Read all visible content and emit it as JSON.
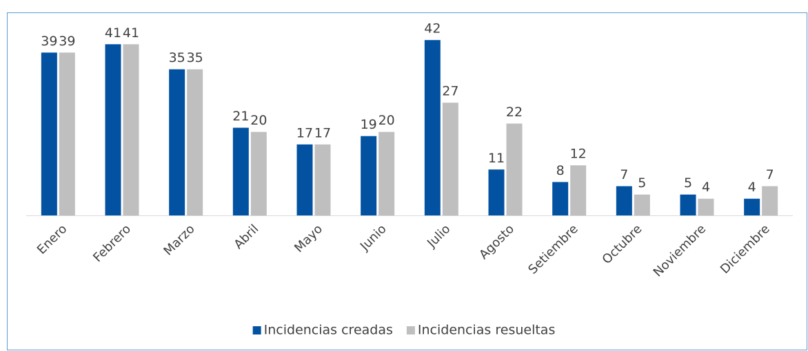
{
  "chart_data": {
    "type": "bar",
    "categories": [
      "Enero",
      "Febrero",
      "Marzo",
      "Abril",
      "Mayo",
      "Junio",
      "Julio",
      "Agosto",
      "Setiembre",
      "Octubre",
      "Noviembre",
      "Diciembre"
    ],
    "series": [
      {
        "name": "Incidencias creadas",
        "color": "#0352a2",
        "values": [
          39,
          41,
          35,
          21,
          17,
          19,
          42,
          11,
          8,
          7,
          5,
          4
        ]
      },
      {
        "name": "Incidencias resueltas",
        "color": "#bfbfbf",
        "values": [
          39,
          41,
          35,
          20,
          17,
          20,
          27,
          22,
          12,
          5,
          4,
          7
        ]
      }
    ],
    "ylim": [
      0,
      45
    ],
    "legend": "bottom",
    "grid": false
  }
}
